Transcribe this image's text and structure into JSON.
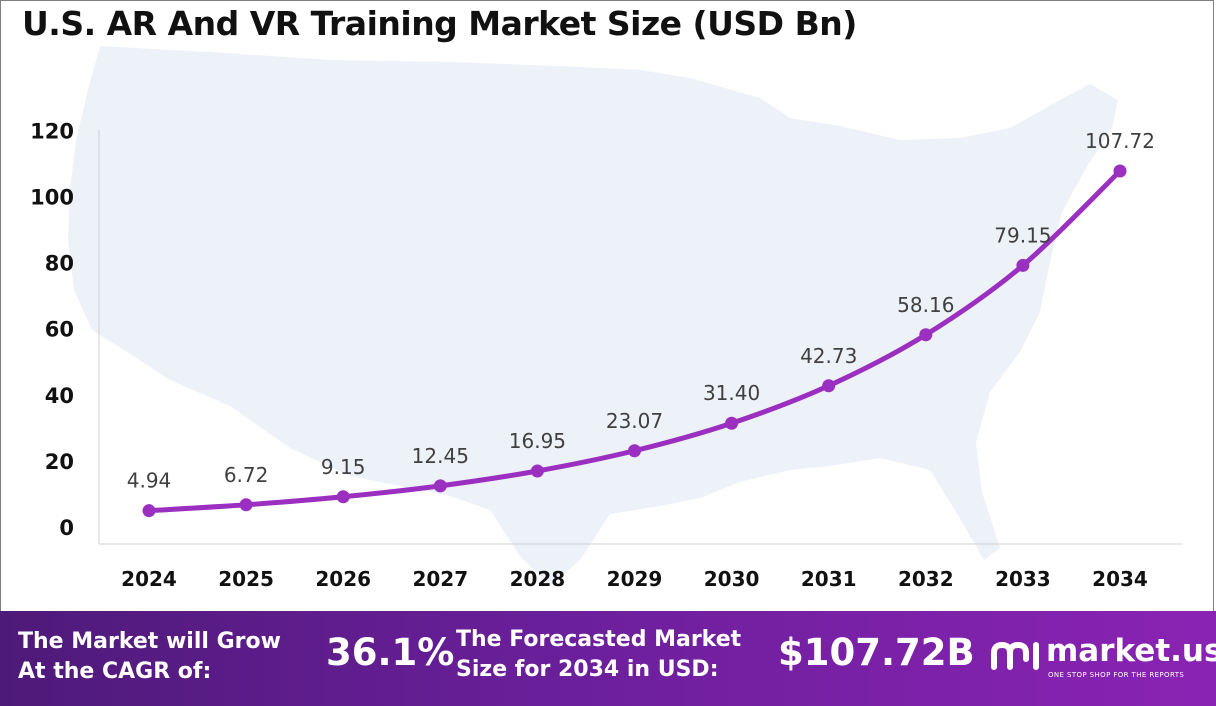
{
  "title": "U.S. AR And VR Training Market Size (USD Bn)",
  "chart_data": {
    "type": "line",
    "categories": [
      "2024",
      "2025",
      "2026",
      "2027",
      "2028",
      "2029",
      "2030",
      "2031",
      "2032",
      "2033",
      "2034"
    ],
    "values": [
      4.94,
      6.72,
      9.15,
      12.45,
      16.95,
      23.07,
      31.4,
      42.73,
      58.16,
      79.15,
      107.72
    ],
    "data_labels": [
      "4.94",
      "6.72",
      "9.15",
      "12.45",
      "16.95",
      "23.07",
      "31.40",
      "42.73",
      "58.16",
      "79.15",
      "107.72"
    ],
    "yticks": [
      "0",
      "20",
      "40",
      "60",
      "80",
      "100",
      "120"
    ],
    "ylim": [
      0,
      120
    ],
    "grid": false,
    "line_color": "#9b2fc0",
    "background_image": "us-map-silhouette"
  },
  "footer": {
    "cagr_label_line1": "The Market will Grow",
    "cagr_label_line2": "At the CAGR of:",
    "cagr_value": "36.1%",
    "forecast_label_line1": "The Forecasted Market",
    "forecast_label_line2": "Size for 2034 in USD:",
    "forecast_value": "$107.72B",
    "brand_name": "market.us",
    "brand_tagline": "ONE STOP SHOP FOR THE REPORTS",
    "brand_icon": "market-us-logo-icon",
    "background_colors": [
      "#4e1a79",
      "#8a23b4"
    ]
  }
}
